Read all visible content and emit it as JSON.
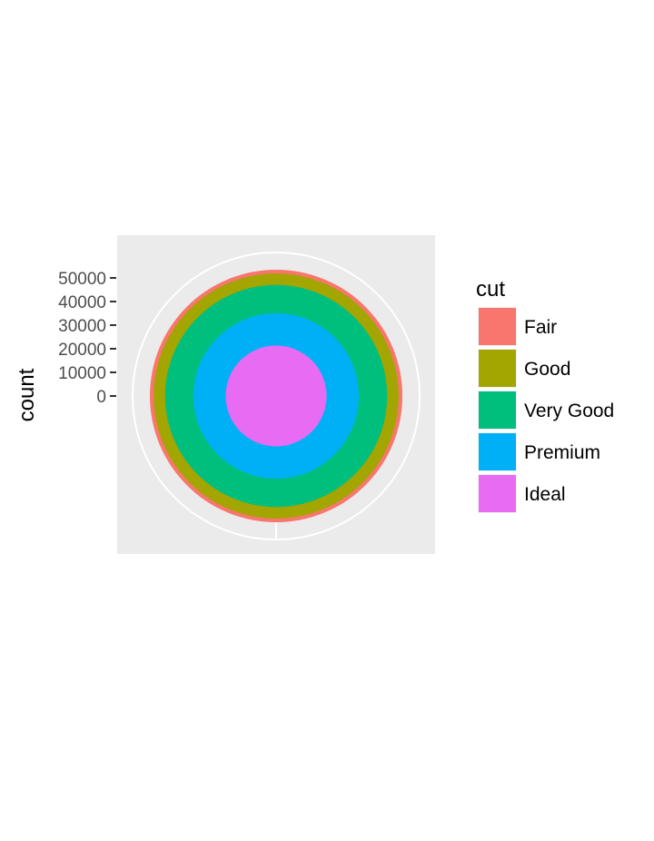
{
  "chart_data": {
    "type": "pie",
    "coord": "polar (stacked bar, theta = y)",
    "ylabel": "count",
    "y_ticks": [
      0,
      10000,
      20000,
      30000,
      40000,
      50000
    ],
    "y_tick_labels": [
      "0",
      "10000",
      "20000",
      "30000",
      "40000",
      "50000"
    ],
    "ylim": [
      0,
      53940
    ],
    "series": [
      {
        "name": "Fair",
        "value": 1610,
        "color": "#F8766D"
      },
      {
        "name": "Good",
        "value": 4906,
        "color": "#A3A500"
      },
      {
        "name": "Very Good",
        "value": 12082,
        "color": "#00BF7D"
      },
      {
        "name": "Premium",
        "value": 13791,
        "color": "#00B0F6"
      },
      {
        "name": "Ideal",
        "value": 21551,
        "color": "#E76BF3"
      }
    ],
    "legend": {
      "title": "cut",
      "placement": "right"
    },
    "panel_background": "#EBEBEB",
    "grid": true
  }
}
